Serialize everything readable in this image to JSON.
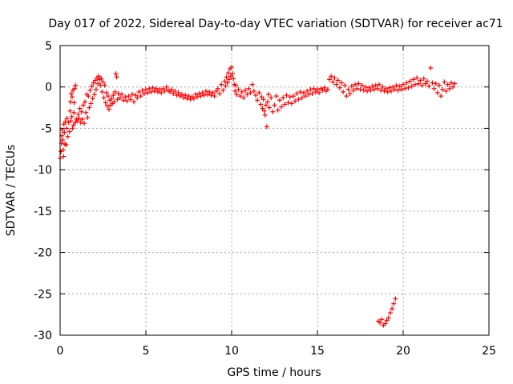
{
  "chart_data": {
    "type": "scatter",
    "title": "Day 017 of 2022, Sidereal Day-to-day VTEC variation (SDTVAR) for receiver ac71",
    "xlabel": "GPS time / hours",
    "ylabel": "SDTVAR / TECUs",
    "xlim": [
      0,
      25
    ],
    "ylim": [
      -30,
      5
    ],
    "xticks": [
      0,
      5,
      10,
      15,
      20,
      25
    ],
    "yticks": [
      5,
      0,
      -5,
      -10,
      -15,
      -20,
      -25,
      -30
    ],
    "grid": true,
    "marker": "+",
    "color": "#ff0000",
    "series": [
      {
        "name": "SDTVAR",
        "points": [
          [
            0.0,
            -8.6
          ],
          [
            0.05,
            -7.8
          ],
          [
            0.08,
            -6.8
          ],
          [
            0.1,
            -5.9
          ],
          [
            0.12,
            -5.2
          ],
          [
            0.15,
            -6.4
          ],
          [
            0.18,
            -7.6
          ],
          [
            0.2,
            -8.4
          ],
          [
            0.22,
            -4.5
          ],
          [
            0.25,
            -5.5
          ],
          [
            0.28,
            -6.9
          ],
          [
            0.3,
            -4.2
          ],
          [
            0.35,
            -7.0
          ],
          [
            0.38,
            -5.0
          ],
          [
            0.4,
            -3.8
          ],
          [
            0.45,
            -6.0
          ],
          [
            0.5,
            -4.3
          ],
          [
            0.55,
            -5.4
          ],
          [
            0.58,
            -2.9
          ],
          [
            0.6,
            -1.8
          ],
          [
            0.62,
            -4.1
          ],
          [
            0.65,
            -0.8
          ],
          [
            0.68,
            -3.6
          ],
          [
            0.7,
            -1.2
          ],
          [
            0.72,
            -5.0
          ],
          [
            0.75,
            -0.4
          ],
          [
            0.78,
            -4.6
          ],
          [
            0.8,
            -3.1
          ],
          [
            0.82,
            -1.9
          ],
          [
            0.85,
            -0.2
          ],
          [
            0.88,
            -4.3
          ],
          [
            0.9,
            0.2
          ],
          [
            0.95,
            -3.9
          ],
          [
            1.0,
            -4.1
          ],
          [
            1.05,
            -3.3
          ],
          [
            1.1,
            -3.8
          ],
          [
            1.15,
            -2.6
          ],
          [
            1.2,
            -4.3
          ],
          [
            1.25,
            -3.0
          ],
          [
            1.3,
            -3.9
          ],
          [
            1.35,
            -2.2
          ],
          [
            1.4,
            -4.4
          ],
          [
            1.45,
            -1.8
          ],
          [
            1.5,
            -3.1
          ],
          [
            1.55,
            -0.9
          ],
          [
            1.6,
            -3.7
          ],
          [
            1.65,
            -1.1
          ],
          [
            1.7,
            -2.5
          ],
          [
            1.75,
            -0.4
          ],
          [
            1.8,
            -2.0
          ],
          [
            1.85,
            0.1
          ],
          [
            1.9,
            -1.4
          ],
          [
            1.95,
            0.5
          ],
          [
            2.0,
            -0.9
          ],
          [
            2.05,
            0.8
          ],
          [
            2.1,
            -0.3
          ],
          [
            2.15,
            1.1
          ],
          [
            2.2,
            0.4
          ],
          [
            2.25,
            1.3
          ],
          [
            2.3,
            0.9
          ],
          [
            2.35,
            0.2
          ],
          [
            2.4,
            1.0
          ],
          [
            2.45,
            -0.6
          ],
          [
            2.5,
            0.6
          ],
          [
            2.55,
            -1.3
          ],
          [
            2.6,
            0.2
          ],
          [
            2.65,
            -1.9
          ],
          [
            2.7,
            -0.7
          ],
          [
            2.75,
            -2.3
          ],
          [
            2.8,
            -1.1
          ],
          [
            2.85,
            -2.7
          ],
          [
            2.9,
            -1.6
          ],
          [
            2.95,
            -2.2
          ],
          [
            3.0,
            -1.4
          ],
          [
            3.05,
            -2.0
          ],
          [
            3.1,
            -1.0
          ],
          [
            3.15,
            -1.8
          ],
          [
            3.2,
            -0.6
          ],
          [
            3.25,
            1.6
          ],
          [
            3.3,
            1.2
          ],
          [
            3.35,
            -1.5
          ],
          [
            3.4,
            -0.8
          ],
          [
            3.5,
            -1.3
          ],
          [
            3.6,
            -0.9
          ],
          [
            3.7,
            -1.6
          ],
          [
            3.8,
            -1.2
          ],
          [
            3.9,
            -1.7
          ],
          [
            4.0,
            -1.1
          ],
          [
            4.1,
            -1.5
          ],
          [
            4.2,
            -0.9
          ],
          [
            4.3,
            -1.8
          ],
          [
            4.4,
            -1.0
          ],
          [
            4.5,
            -1.3
          ],
          [
            4.6,
            -0.6
          ],
          [
            4.7,
            -1.1
          ],
          [
            4.8,
            -0.4
          ],
          [
            4.9,
            -0.8
          ],
          [
            5.0,
            -0.3
          ],
          [
            5.1,
            -0.7
          ],
          [
            5.2,
            -0.2
          ],
          [
            5.3,
            -0.6
          ],
          [
            5.4,
            -0.1
          ],
          [
            5.5,
            -0.5
          ],
          [
            5.6,
            -0.2
          ],
          [
            5.7,
            -0.6
          ],
          [
            5.8,
            -0.3
          ],
          [
            5.9,
            -0.7
          ],
          [
            6.0,
            -0.2
          ],
          [
            6.1,
            -0.5
          ],
          [
            6.2,
            0.0
          ],
          [
            6.3,
            -0.4
          ],
          [
            6.4,
            -0.6
          ],
          [
            6.5,
            -0.3
          ],
          [
            6.6,
            -0.8
          ],
          [
            6.7,
            -0.5
          ],
          [
            6.8,
            -1.0
          ],
          [
            6.9,
            -0.7
          ],
          [
            7.0,
            -1.1
          ],
          [
            7.1,
            -0.9
          ],
          [
            7.2,
            -1.3
          ],
          [
            7.3,
            -1.0
          ],
          [
            7.4,
            -1.4
          ],
          [
            7.5,
            -1.1
          ],
          [
            7.6,
            -1.5
          ],
          [
            7.7,
            -1.2
          ],
          [
            7.8,
            -1.4
          ],
          [
            7.9,
            -0.9
          ],
          [
            8.0,
            -1.2
          ],
          [
            8.1,
            -0.8
          ],
          [
            8.2,
            -1.1
          ],
          [
            8.3,
            -0.7
          ],
          [
            8.4,
            -1.0
          ],
          [
            8.5,
            -0.5
          ],
          [
            8.6,
            -0.9
          ],
          [
            8.7,
            -0.6
          ],
          [
            8.8,
            -1.0
          ],
          [
            8.9,
            -0.7
          ],
          [
            9.0,
            -1.1
          ],
          [
            9.1,
            -0.5
          ],
          [
            9.2,
            -0.2
          ],
          [
            9.3,
            -0.8
          ],
          [
            9.4,
            0.3
          ],
          [
            9.5,
            -0.4
          ],
          [
            9.6,
            0.7
          ],
          [
            9.65,
            0.1
          ],
          [
            9.7,
            1.2
          ],
          [
            9.75,
            0.5
          ],
          [
            9.8,
            1.7
          ],
          [
            9.85,
            0.9
          ],
          [
            9.9,
            2.2
          ],
          [
            9.95,
            1.3
          ],
          [
            10.0,
            2.4
          ],
          [
            10.05,
            1.6
          ],
          [
            10.1,
            1.0
          ],
          [
            10.15,
            0.3
          ],
          [
            10.2,
            -0.5
          ],
          [
            10.25,
            0.2
          ],
          [
            10.3,
            -0.9
          ],
          [
            10.4,
            -0.3
          ],
          [
            10.5,
            -1.1
          ],
          [
            10.6,
            -0.6
          ],
          [
            10.7,
            -1.3
          ],
          [
            10.8,
            -0.4
          ],
          [
            10.9,
            -0.9
          ],
          [
            11.0,
            -0.2
          ],
          [
            11.1,
            -0.7
          ],
          [
            11.2,
            0.3
          ],
          [
            11.3,
            -0.5
          ],
          [
            11.4,
            -1.0
          ],
          [
            11.5,
            -1.6
          ],
          [
            11.6,
            -0.7
          ],
          [
            11.7,
            -2.1
          ],
          [
            11.75,
            -1.2
          ],
          [
            11.8,
            -2.6
          ],
          [
            11.85,
            -1.5
          ],
          [
            11.9,
            -2.9
          ],
          [
            11.95,
            -3.4
          ],
          [
            12.0,
            -2.2
          ],
          [
            12.05,
            -4.8
          ],
          [
            12.1,
            -1.8
          ],
          [
            12.15,
            -0.9
          ],
          [
            12.2,
            -2.5
          ],
          [
            12.3,
            -1.3
          ],
          [
            12.4,
            -3.0
          ],
          [
            12.5,
            -2.2
          ],
          [
            12.6,
            -1.1
          ],
          [
            12.7,
            -2.8
          ],
          [
            12.8,
            -1.6
          ],
          [
            12.9,
            -2.4
          ],
          [
            13.0,
            -1.3
          ],
          [
            13.1,
            -2.1
          ],
          [
            13.2,
            -1.0
          ],
          [
            13.3,
            -1.9
          ],
          [
            13.4,
            -1.2
          ],
          [
            13.5,
            -2.0
          ],
          [
            13.6,
            -1.1
          ],
          [
            13.7,
            -1.7
          ],
          [
            13.8,
            -0.8
          ],
          [
            13.9,
            -1.5
          ],
          [
            14.0,
            -0.6
          ],
          [
            14.1,
            -1.3
          ],
          [
            14.2,
            -0.7
          ],
          [
            14.3,
            -1.1
          ],
          [
            14.4,
            -0.5
          ],
          [
            14.5,
            -0.9
          ],
          [
            14.6,
            -0.3
          ],
          [
            14.7,
            -0.8
          ],
          [
            14.8,
            -0.2
          ],
          [
            14.9,
            -0.6
          ],
          [
            15.0,
            -0.3
          ],
          [
            15.1,
            -0.7
          ],
          [
            15.2,
            -0.2
          ],
          [
            15.3,
            -0.4
          ],
          [
            15.4,
            -0.1
          ],
          [
            15.5,
            -0.5
          ],
          [
            15.6,
            -0.3
          ],
          [
            15.7,
            0.9
          ],
          [
            15.8,
            1.3
          ],
          [
            15.9,
            0.6
          ],
          [
            16.0,
            1.1
          ],
          [
            16.1,
            0.3
          ],
          [
            16.2,
            0.8
          ],
          [
            16.3,
            -0.1
          ],
          [
            16.4,
            0.5
          ],
          [
            16.5,
            -0.6
          ],
          [
            16.6,
            0.2
          ],
          [
            16.7,
            -1.1
          ],
          [
            16.8,
            -0.3
          ],
          [
            16.9,
            -0.8
          ],
          [
            17.0,
            0.1
          ],
          [
            17.1,
            -0.4
          ],
          [
            17.2,
            0.3
          ],
          [
            17.3,
            -0.2
          ],
          [
            17.4,
            0.4
          ],
          [
            17.5,
            -0.3
          ],
          [
            17.6,
            0.2
          ],
          [
            17.7,
            -0.4
          ],
          [
            17.8,
            0.0
          ],
          [
            17.9,
            -0.5
          ],
          [
            18.0,
            -0.1
          ],
          [
            18.1,
            -0.4
          ],
          [
            18.2,
            0.1
          ],
          [
            18.3,
            -0.3
          ],
          [
            18.4,
            0.2
          ],
          [
            18.5,
            -0.2
          ],
          [
            18.6,
            0.3
          ],
          [
            18.7,
            -0.4
          ],
          [
            18.8,
            0.0
          ],
          [
            18.9,
            -0.5
          ],
          [
            19.0,
            -0.2
          ],
          [
            19.1,
            -0.6
          ],
          [
            19.2,
            -0.1
          ],
          [
            19.3,
            -0.5
          ],
          [
            19.4,
            0.0
          ],
          [
            19.5,
            -0.3
          ],
          [
            19.6,
            0.2
          ],
          [
            19.7,
            -0.4
          ],
          [
            19.8,
            0.1
          ],
          [
            19.9,
            -0.3
          ],
          [
            20.0,
            0.3
          ],
          [
            20.1,
            -0.2
          ],
          [
            20.2,
            0.5
          ],
          [
            20.3,
            -0.1
          ],
          [
            20.4,
            0.7
          ],
          [
            20.5,
            0.1
          ],
          [
            20.6,
            0.9
          ],
          [
            20.7,
            0.3
          ],
          [
            20.8,
            1.1
          ],
          [
            20.9,
            0.4
          ],
          [
            21.0,
            0.8
          ],
          [
            21.1,
            0.2
          ],
          [
            21.2,
            1.0
          ],
          [
            21.3,
            0.4
          ],
          [
            21.4,
            0.7
          ],
          [
            21.5,
            0.1
          ],
          [
            21.6,
            2.3
          ],
          [
            21.7,
            0.5
          ],
          [
            21.8,
            -0.2
          ],
          [
            21.9,
            0.4
          ],
          [
            22.0,
            -0.7
          ],
          [
            22.1,
            0.2
          ],
          [
            22.2,
            -1.1
          ],
          [
            22.3,
            -0.3
          ],
          [
            22.4,
            0.6
          ],
          [
            22.5,
            -0.5
          ],
          [
            22.6,
            0.3
          ],
          [
            22.7,
            -0.2
          ],
          [
            22.8,
            0.5
          ],
          [
            22.9,
            0.0
          ],
          [
            23.0,
            0.4
          ],
          [
            18.55,
            -28.3
          ],
          [
            18.65,
            -28.5
          ],
          [
            18.75,
            -28.1
          ],
          [
            18.85,
            -28.8
          ],
          [
            18.95,
            -28.6
          ],
          [
            19.05,
            -28.2
          ],
          [
            19.15,
            -27.9
          ],
          [
            19.25,
            -27.3
          ],
          [
            19.35,
            -26.8
          ],
          [
            19.45,
            -26.2
          ],
          [
            19.55,
            -25.6
          ]
        ]
      }
    ]
  }
}
